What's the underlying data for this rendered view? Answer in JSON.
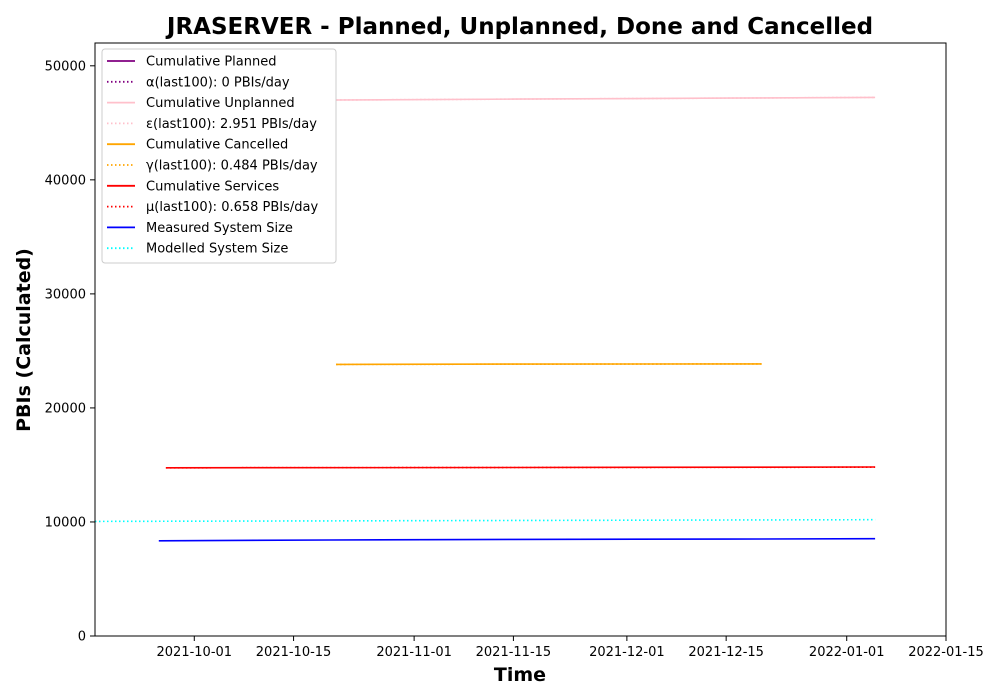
{
  "chart_data": {
    "type": "line",
    "title": "JRASERVER - Planned, Unplanned, Done  and Cancelled",
    "xlabel": "Time",
    "ylabel": "PBIs (Calculated)",
    "xlim": [
      "2021-09-17",
      "2022-01-15"
    ],
    "ylim": [
      0,
      52000
    ],
    "x_ticks": [
      "2021-10-01",
      "2021-10-15",
      "2021-11-01",
      "2021-11-15",
      "2021-12-01",
      "2021-12-15",
      "2022-01-01",
      "2022-01-15"
    ],
    "y_ticks": [
      0,
      10000,
      20000,
      30000,
      40000,
      50000
    ],
    "grid": false,
    "legend_position": "top-left",
    "series": [
      {
        "name": "Cumulative Planned",
        "color": "#800080",
        "style": "solid",
        "points": []
      },
      {
        "name": "α(last100): 0 PBIs/day",
        "color": "#800080",
        "style": "dotted",
        "points": []
      },
      {
        "name": "Cumulative Unplanned",
        "color": "#ffc0cb",
        "style": "solid",
        "points": [
          [
            "2021-10-21",
            47000
          ],
          [
            "2021-11-15",
            47080
          ],
          [
            "2021-12-15",
            47170
          ],
          [
            "2022-01-05",
            47230
          ]
        ]
      },
      {
        "name": "ε(last100): 2.951 PBIs/day",
        "color": "#ffc0cb",
        "style": "dotted",
        "points": [
          [
            "2021-10-21",
            47000
          ],
          [
            "2022-01-05",
            47230
          ]
        ]
      },
      {
        "name": "Cumulative Cancelled",
        "color": "#ffa500",
        "style": "solid",
        "points": [
          [
            "2021-10-21",
            23820
          ],
          [
            "2021-11-15",
            23840
          ],
          [
            "2021-12-20",
            23860
          ]
        ]
      },
      {
        "name": "γ(last100): 0.484 PBIs/day",
        "color": "#ffa500",
        "style": "dotted",
        "points": [
          [
            "2021-10-21",
            23820
          ],
          [
            "2021-12-20",
            23860
          ]
        ]
      },
      {
        "name": "Cumulative Services",
        "color": "#ff0000",
        "style": "solid",
        "points": [
          [
            "2021-09-27",
            14750
          ],
          [
            "2021-11-15",
            14780
          ],
          [
            "2022-01-05",
            14820
          ]
        ]
      },
      {
        "name": "μ(last100): 0.658 PBIs/day",
        "color": "#ff0000",
        "style": "dotted",
        "points": [
          [
            "2021-09-27",
            14750
          ],
          [
            "2022-01-05",
            14800
          ]
        ]
      },
      {
        "name": "Measured System Size",
        "color": "#0000ff",
        "style": "solid",
        "points": [
          [
            "2021-09-26",
            8350
          ],
          [
            "2021-10-20",
            8420
          ],
          [
            "2021-11-15",
            8470
          ],
          [
            "2021-12-15",
            8500
          ],
          [
            "2022-01-05",
            8530
          ]
        ]
      },
      {
        "name": "Modelled System Size",
        "color": "#00ffff",
        "style": "dotted",
        "points": [
          [
            "2021-09-17",
            10050
          ],
          [
            "2021-11-01",
            10110
          ],
          [
            "2021-12-15",
            10170
          ],
          [
            "2022-01-05",
            10200
          ]
        ]
      }
    ]
  }
}
